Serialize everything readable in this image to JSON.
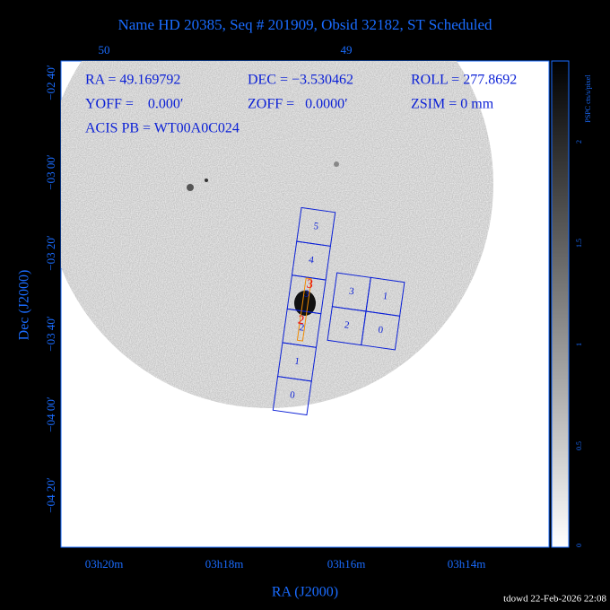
{
  "header": {
    "title": "Name HD 20385, Seq # 201909, Obsid 32182, ST Scheduled"
  },
  "top_axis": {
    "labels": [
      "50",
      "49"
    ]
  },
  "info": {
    "lines": [
      [
        "RA = 49.169792",
        "DEC = −3.530462",
        "ROLL = 277.8692"
      ],
      [
        "YOFF =    0.000′",
        "ZOFF =   0.0000′",
        "ZSIM = 0 mm"
      ],
      [
        "ACIS PB = WT00A0C024"
      ]
    ]
  },
  "left_axis": {
    "title": "Dec (J2000)",
    "labels": [
      "−02 40′",
      "−03 00′",
      "−03 20′",
      "−03 40′",
      "−04 00′",
      "−04 20′"
    ]
  },
  "bottom_axis": {
    "title": "RA (J2000)",
    "labels": [
      "03h20m",
      "03h18m",
      "03h16m",
      "03h14m"
    ]
  },
  "colorbar": {
    "title": "PSPC cts/s/pixel",
    "labels": [
      "2",
      "1.5",
      "1",
      "0.5",
      "0"
    ]
  },
  "chips": {
    "strip": [
      "5",
      "4",
      "3",
      "2",
      "1",
      "0"
    ],
    "array": [
      "3",
      "1",
      "2",
      "0"
    ],
    "highlight": [
      "3",
      "2"
    ]
  },
  "footer": {
    "text": "tdowd 22-Feb-2026 22:08"
  }
}
